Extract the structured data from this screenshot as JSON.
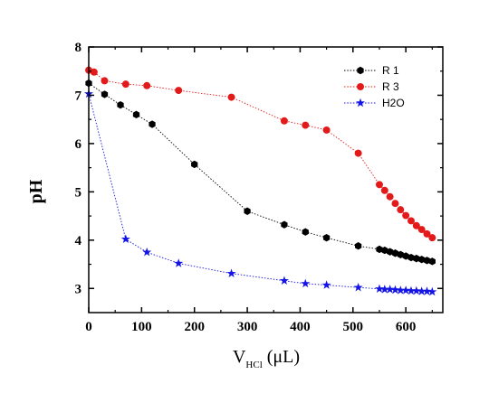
{
  "chart_data": {
    "type": "line",
    "xlabel": {
      "main": "V",
      "sub": "HCl",
      "unit": " (μL)"
    },
    "ylabel": "pH",
    "xlim": [
      0,
      670
    ],
    "ylim": [
      2.5,
      8
    ],
    "xticks": [
      0,
      100,
      200,
      300,
      400,
      500,
      600
    ],
    "yticks": [
      3,
      4,
      5,
      6,
      7,
      8
    ],
    "grid": false,
    "legend_position": "top-right",
    "series": [
      {
        "name": "R 1",
        "color": "#000000",
        "marker": "hexagon",
        "x": [
          0,
          30,
          60,
          90,
          120,
          200,
          300,
          370,
          410,
          450,
          510,
          550,
          560,
          570,
          580,
          590,
          600,
          610,
          620,
          630,
          640,
          650
        ],
        "y": [
          7.25,
          7.02,
          6.8,
          6.6,
          6.4,
          5.57,
          4.6,
          4.32,
          4.17,
          4.05,
          3.88,
          3.81,
          3.79,
          3.76,
          3.73,
          3.7,
          3.67,
          3.64,
          3.62,
          3.6,
          3.58,
          3.56
        ]
      },
      {
        "name": "R 3",
        "color": "#e31a1a",
        "marker": "circle",
        "x": [
          0,
          10,
          30,
          70,
          110,
          170,
          270,
          370,
          410,
          450,
          510,
          550,
          560,
          570,
          580,
          590,
          600,
          610,
          620,
          630,
          640,
          650
        ],
        "y": [
          7.52,
          7.48,
          7.3,
          7.23,
          7.2,
          7.1,
          6.96,
          6.47,
          6.38,
          6.28,
          5.8,
          5.15,
          5.03,
          4.9,
          4.76,
          4.63,
          4.51,
          4.4,
          4.3,
          4.22,
          4.13,
          4.05
        ]
      },
      {
        "name": "H2O",
        "color": "#1414e6",
        "marker": "star",
        "x": [
          0,
          70,
          110,
          170,
          270,
          370,
          410,
          450,
          510,
          550,
          560,
          570,
          580,
          590,
          600,
          610,
          620,
          630,
          640,
          650
        ],
        "y": [
          7.03,
          4.02,
          3.75,
          3.52,
          3.31,
          3.16,
          3.1,
          3.07,
          3.02,
          2.99,
          2.98,
          2.98,
          2.97,
          2.96,
          2.96,
          2.95,
          2.95,
          2.94,
          2.94,
          2.93
        ]
      }
    ]
  }
}
